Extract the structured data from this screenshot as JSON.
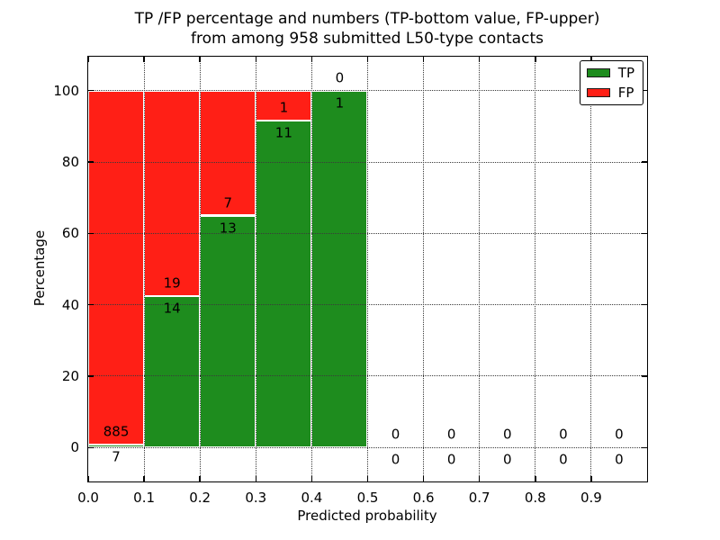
{
  "chart_data": {
    "type": "bar",
    "stacked": true,
    "title_line1": "TP /FP percentage and numbers (TP-bottom value, FP-upper)",
    "title_line2": "from among 958 submitted L50-type contacts",
    "xlabel": "Predicted probability",
    "ylabel": "Percentage",
    "total_submitted_contacts": 958,
    "xlim": [
      0.0,
      1.0
    ],
    "ylim": [
      -9.5,
      109.5
    ],
    "grid": "dotted",
    "xticks": [
      {
        "value": 0.0,
        "label": "0.0"
      },
      {
        "value": 0.1,
        "label": "0.1"
      },
      {
        "value": 0.2,
        "label": "0.2"
      },
      {
        "value": 0.3,
        "label": "0.3"
      },
      {
        "value": 0.4,
        "label": "0.4"
      },
      {
        "value": 0.5,
        "label": "0.5"
      },
      {
        "value": 0.6,
        "label": "0.6"
      },
      {
        "value": 0.7,
        "label": "0.7"
      },
      {
        "value": 0.8,
        "label": "0.8"
      },
      {
        "value": 0.9,
        "label": "0.9"
      }
    ],
    "yticks": [
      {
        "value": 0,
        "label": "0"
      },
      {
        "value": 20,
        "label": "20"
      },
      {
        "value": 40,
        "label": "40"
      },
      {
        "value": 60,
        "label": "60"
      },
      {
        "value": 80,
        "label": "80"
      },
      {
        "value": 100,
        "label": "100"
      }
    ],
    "legend": {
      "position": "upper right",
      "items": [
        {
          "name": "TP",
          "color": "#1e8c1e"
        },
        {
          "name": "FP",
          "color": "#ff1f16"
        }
      ]
    },
    "bins": [
      {
        "x_start": 0.0,
        "x_end": 0.1,
        "tp_count": 7,
        "fp_count": 885,
        "tp_percent": 0.78,
        "fp_percent": 99.22
      },
      {
        "x_start": 0.1,
        "x_end": 0.2,
        "tp_count": 14,
        "fp_count": 19,
        "tp_percent": 42.42,
        "fp_percent": 57.58
      },
      {
        "x_start": 0.2,
        "x_end": 0.3,
        "tp_count": 13,
        "fp_count": 7,
        "tp_percent": 65.0,
        "fp_percent": 35.0
      },
      {
        "x_start": 0.3,
        "x_end": 0.4,
        "tp_count": 11,
        "fp_count": 1,
        "tp_percent": 91.67,
        "fp_percent": 8.33
      },
      {
        "x_start": 0.4,
        "x_end": 0.5,
        "tp_count": 1,
        "fp_count": 0,
        "tp_percent": 100.0,
        "fp_percent": 0.0
      },
      {
        "x_start": 0.5,
        "x_end": 0.6,
        "tp_count": 0,
        "fp_count": 0,
        "tp_percent": 0,
        "fp_percent": 0
      },
      {
        "x_start": 0.6,
        "x_end": 0.7,
        "tp_count": 0,
        "fp_count": 0,
        "tp_percent": 0,
        "fp_percent": 0
      },
      {
        "x_start": 0.7,
        "x_end": 0.8,
        "tp_count": 0,
        "fp_count": 0,
        "tp_percent": 0,
        "fp_percent": 0
      },
      {
        "x_start": 0.8,
        "x_end": 0.9,
        "tp_count": 0,
        "fp_count": 0,
        "tp_percent": 0,
        "fp_percent": 0
      },
      {
        "x_start": 0.9,
        "x_end": 1.0,
        "tp_count": 0,
        "fp_count": 0,
        "tp_percent": 0,
        "fp_percent": 0
      }
    ]
  }
}
